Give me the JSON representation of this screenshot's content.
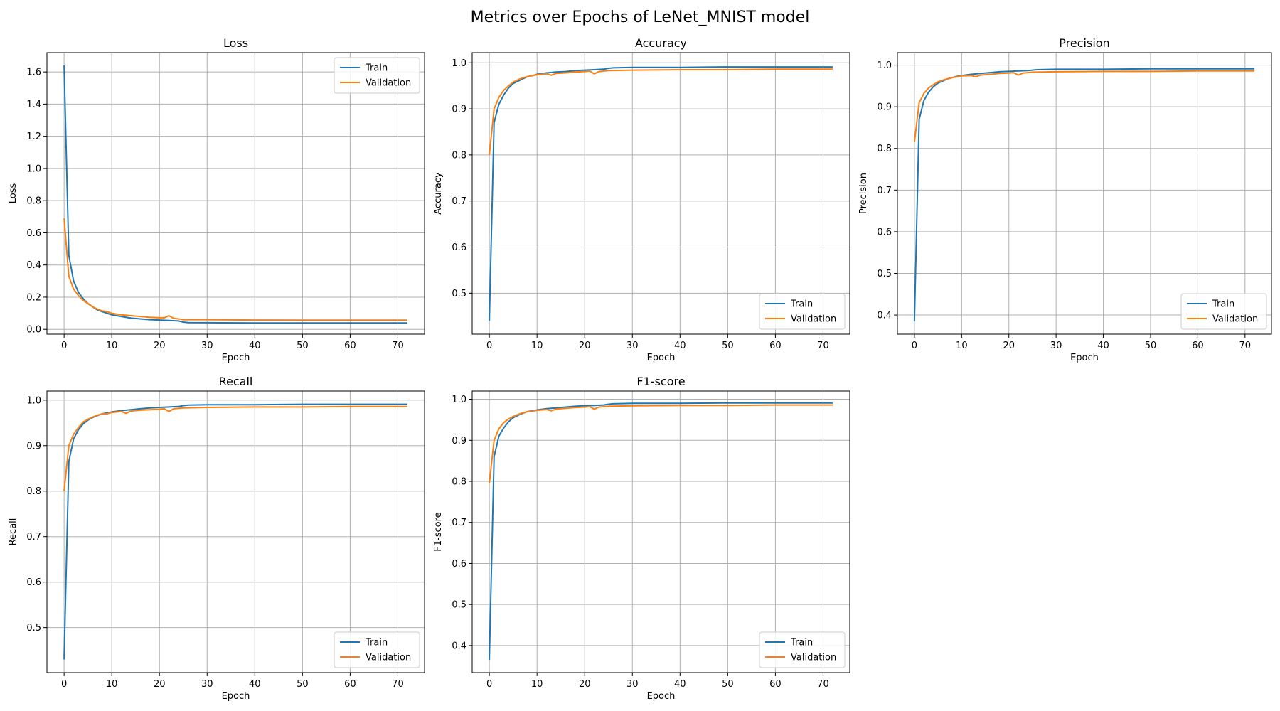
{
  "figure_title": "Metrics over Epochs of LeNet_MNIST model",
  "colors": {
    "train": "#1f77b4",
    "validation": "#ff7f0e",
    "grid": "#b0b0b0"
  },
  "chart_data": [
    {
      "type": "line",
      "title": "Loss",
      "xlabel": "Epoch",
      "ylabel": "Loss",
      "xlim": [
        -3.6,
        75.6
      ],
      "ylim": [
        -0.03,
        1.72
      ],
      "xticks": [
        0,
        10,
        20,
        30,
        40,
        50,
        60,
        70
      ],
      "yticks": [
        0.0,
        0.2,
        0.4,
        0.6,
        0.8,
        1.0,
        1.2,
        1.4,
        1.6
      ],
      "ytick_labels": [
        "0.0",
        "0.2",
        "0.4",
        "0.6",
        "0.8",
        "1.0",
        "1.2",
        "1.4",
        "1.6"
      ],
      "grid": true,
      "legend": "upper right",
      "series": [
        {
          "name": "Train",
          "x": [
            0,
            1,
            2,
            3,
            4,
            5,
            6,
            7,
            8,
            9,
            10,
            12,
            14,
            16,
            18,
            20,
            22,
            24,
            25,
            26,
            30,
            40,
            50,
            60,
            72
          ],
          "y": [
            1.64,
            0.46,
            0.3,
            0.23,
            0.19,
            0.16,
            0.14,
            0.12,
            0.11,
            0.1,
            0.09,
            0.08,
            0.07,
            0.065,
            0.06,
            0.058,
            0.055,
            0.052,
            0.045,
            0.042,
            0.041,
            0.04,
            0.04,
            0.04,
            0.04
          ]
        },
        {
          "name": "Validation",
          "x": [
            0,
            1,
            2,
            3,
            4,
            5,
            6,
            7,
            8,
            9,
            10,
            12,
            14,
            16,
            18,
            20,
            21,
            22,
            23,
            24,
            25,
            30,
            40,
            50,
            60,
            72
          ],
          "y": [
            0.69,
            0.33,
            0.25,
            0.21,
            0.18,
            0.16,
            0.14,
            0.125,
            0.115,
            0.11,
            0.1,
            0.09,
            0.085,
            0.08,
            0.075,
            0.072,
            0.072,
            0.085,
            0.068,
            0.065,
            0.06,
            0.06,
            0.058,
            0.057,
            0.057,
            0.057
          ]
        }
      ]
    },
    {
      "type": "line",
      "title": "Accuracy",
      "xlabel": "Epoch",
      "ylabel": "Accuracy",
      "xlim": [
        -3.6,
        75.6
      ],
      "ylim": [
        0.411,
        1.022
      ],
      "xticks": [
        0,
        10,
        20,
        30,
        40,
        50,
        60,
        70
      ],
      "yticks": [
        0.5,
        0.6,
        0.7,
        0.8,
        0.9,
        1.0
      ],
      "ytick_labels": [
        "0.5",
        "0.6",
        "0.7",
        "0.8",
        "0.9",
        "1.0"
      ],
      "grid": true,
      "legend": "lower right",
      "series": [
        {
          "name": "Train",
          "x": [
            0,
            1,
            2,
            3,
            4,
            5,
            6,
            7,
            8,
            9,
            10,
            12,
            14,
            16,
            18,
            20,
            22,
            24,
            25,
            26,
            30,
            40,
            50,
            60,
            72
          ],
          "y": [
            0.44,
            0.87,
            0.91,
            0.93,
            0.945,
            0.955,
            0.96,
            0.965,
            0.97,
            0.972,
            0.975,
            0.978,
            0.98,
            0.981,
            0.983,
            0.984,
            0.985,
            0.986,
            0.988,
            0.989,
            0.99,
            0.99,
            0.991,
            0.991,
            0.991
          ]
        },
        {
          "name": "Validation",
          "x": [
            0,
            1,
            2,
            3,
            4,
            5,
            6,
            7,
            8,
            9,
            10,
            12,
            13,
            14,
            16,
            18,
            20,
            21,
            22,
            23,
            24,
            25,
            30,
            40,
            50,
            60,
            72
          ],
          "y": [
            0.8,
            0.9,
            0.925,
            0.94,
            0.95,
            0.958,
            0.963,
            0.967,
            0.97,
            0.972,
            0.974,
            0.976,
            0.973,
            0.977,
            0.978,
            0.98,
            0.981,
            0.982,
            0.976,
            0.981,
            0.982,
            0.983,
            0.984,
            0.985,
            0.985,
            0.986,
            0.986
          ]
        }
      ]
    },
    {
      "type": "line",
      "title": "Precision",
      "xlabel": "Epoch",
      "ylabel": "Precision",
      "xlim": [
        -3.6,
        75.6
      ],
      "ylim": [
        0.354,
        1.03
      ],
      "xticks": [
        0,
        10,
        20,
        30,
        40,
        50,
        60,
        70
      ],
      "yticks": [
        0.4,
        0.5,
        0.6,
        0.7,
        0.8,
        0.9,
        1.0
      ],
      "ytick_labels": [
        "0.4",
        "0.5",
        "0.6",
        "0.7",
        "0.8",
        "0.9",
        "1.0"
      ],
      "grid": true,
      "legend": "lower right",
      "series": [
        {
          "name": "Train",
          "x": [
            0,
            1,
            2,
            3,
            4,
            5,
            6,
            7,
            8,
            9,
            10,
            12,
            14,
            16,
            18,
            20,
            22,
            24,
            25,
            26,
            30,
            40,
            50,
            60,
            72
          ],
          "y": [
            0.385,
            0.87,
            0.915,
            0.935,
            0.948,
            0.957,
            0.962,
            0.967,
            0.97,
            0.973,
            0.975,
            0.978,
            0.98,
            0.982,
            0.984,
            0.985,
            0.986,
            0.987,
            0.988,
            0.989,
            0.99,
            0.99,
            0.991,
            0.991,
            0.991
          ]
        },
        {
          "name": "Validation",
          "x": [
            0,
            1,
            2,
            3,
            4,
            5,
            6,
            7,
            8,
            9,
            10,
            12,
            13,
            14,
            16,
            18,
            20,
            21,
            22,
            23,
            24,
            25,
            30,
            40,
            50,
            60,
            72
          ],
          "y": [
            0.815,
            0.91,
            0.932,
            0.945,
            0.953,
            0.96,
            0.964,
            0.967,
            0.97,
            0.972,
            0.974,
            0.975,
            0.972,
            0.976,
            0.978,
            0.98,
            0.981,
            0.982,
            0.976,
            0.981,
            0.982,
            0.983,
            0.984,
            0.985,
            0.985,
            0.986,
            0.986
          ]
        }
      ]
    },
    {
      "type": "line",
      "title": "Recall",
      "xlabel": "Epoch",
      "ylabel": "Recall",
      "xlim": [
        -3.6,
        75.6
      ],
      "ylim": [
        0.401,
        1.02
      ],
      "xticks": [
        0,
        10,
        20,
        30,
        40,
        50,
        60,
        70
      ],
      "yticks": [
        0.5,
        0.6,
        0.7,
        0.8,
        0.9,
        1.0
      ],
      "ytick_labels": [
        "0.5",
        "0.6",
        "0.7",
        "0.8",
        "0.9",
        "1.0"
      ],
      "grid": true,
      "legend": "lower right",
      "series": [
        {
          "name": "Train",
          "x": [
            0,
            1,
            2,
            3,
            4,
            5,
            6,
            7,
            8,
            9,
            10,
            12,
            14,
            16,
            18,
            20,
            22,
            24,
            25,
            26,
            30,
            40,
            50,
            60,
            72
          ],
          "y": [
            0.43,
            0.865,
            0.915,
            0.935,
            0.948,
            0.956,
            0.962,
            0.966,
            0.97,
            0.972,
            0.974,
            0.977,
            0.979,
            0.981,
            0.983,
            0.984,
            0.985,
            0.986,
            0.988,
            0.989,
            0.99,
            0.99,
            0.991,
            0.991,
            0.991
          ]
        },
        {
          "name": "Validation",
          "x": [
            0,
            1,
            2,
            3,
            4,
            5,
            6,
            7,
            8,
            9,
            10,
            12,
            13,
            14,
            16,
            18,
            20,
            21,
            22,
            23,
            24,
            25,
            30,
            40,
            50,
            60,
            72
          ],
          "y": [
            0.8,
            0.9,
            0.925,
            0.94,
            0.952,
            0.958,
            0.963,
            0.967,
            0.97,
            0.97,
            0.973,
            0.975,
            0.971,
            0.976,
            0.978,
            0.979,
            0.98,
            0.981,
            0.975,
            0.981,
            0.982,
            0.983,
            0.984,
            0.985,
            0.985,
            0.986,
            0.986
          ]
        }
      ]
    },
    {
      "type": "line",
      "title": "F1-score",
      "xlabel": "Epoch",
      "ylabel": "F1-score",
      "xlim": [
        -3.6,
        75.6
      ],
      "ylim": [
        0.334,
        1.02
      ],
      "xticks": [
        0,
        10,
        20,
        30,
        40,
        50,
        60,
        70
      ],
      "yticks": [
        0.4,
        0.5,
        0.6,
        0.7,
        0.8,
        0.9,
        1.0
      ],
      "ytick_labels": [
        "0.4",
        "0.5",
        "0.6",
        "0.7",
        "0.8",
        "0.9",
        "1.0"
      ],
      "grid": true,
      "legend": "lower right",
      "series": [
        {
          "name": "Train",
          "x": [
            0,
            1,
            2,
            3,
            4,
            5,
            6,
            7,
            8,
            9,
            10,
            12,
            14,
            16,
            18,
            20,
            22,
            24,
            25,
            26,
            30,
            40,
            50,
            60,
            72
          ],
          "y": [
            0.365,
            0.86,
            0.91,
            0.93,
            0.945,
            0.955,
            0.961,
            0.966,
            0.97,
            0.972,
            0.974,
            0.977,
            0.979,
            0.981,
            0.983,
            0.984,
            0.985,
            0.986,
            0.988,
            0.989,
            0.99,
            0.99,
            0.991,
            0.991,
            0.991
          ]
        },
        {
          "name": "Validation",
          "x": [
            0,
            1,
            2,
            3,
            4,
            5,
            6,
            7,
            8,
            9,
            10,
            12,
            13,
            14,
            16,
            18,
            20,
            21,
            22,
            23,
            24,
            25,
            30,
            40,
            50,
            60,
            72
          ],
          "y": [
            0.795,
            0.9,
            0.928,
            0.943,
            0.952,
            0.958,
            0.963,
            0.967,
            0.97,
            0.971,
            0.973,
            0.975,
            0.972,
            0.976,
            0.978,
            0.98,
            0.981,
            0.982,
            0.976,
            0.981,
            0.982,
            0.983,
            0.984,
            0.985,
            0.985,
            0.986,
            0.986
          ]
        }
      ]
    }
  ]
}
